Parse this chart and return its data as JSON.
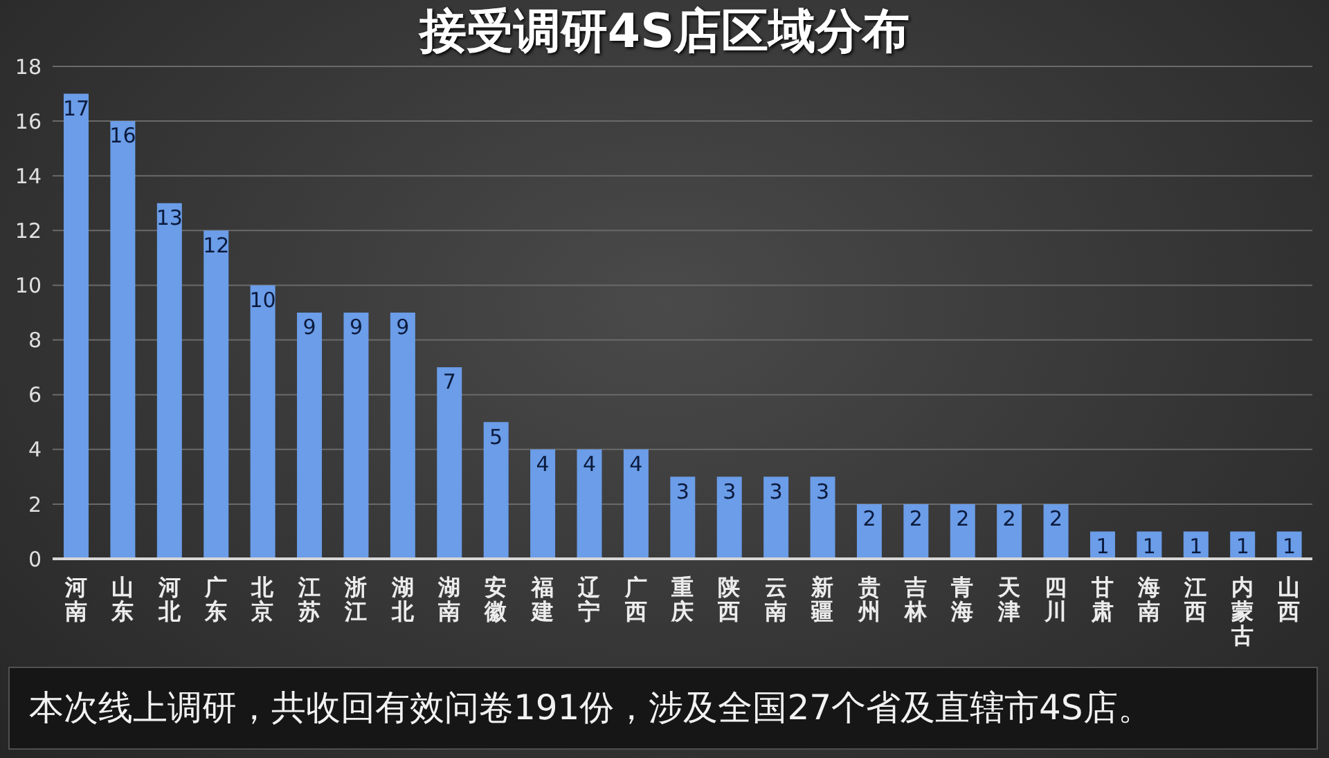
{
  "chart_data": {
    "type": "bar",
    "title": "接受调研4S店区域分布",
    "categories": [
      "河南",
      "山东",
      "河北",
      "广东",
      "北京",
      "江苏",
      "浙江",
      "湖北",
      "湖南",
      "安徽",
      "福建",
      "辽宁",
      "广西",
      "重庆",
      "陕西",
      "云南",
      "新疆",
      "贵州",
      "吉林",
      "青海",
      "天津",
      "四川",
      "甘肃",
      "海南",
      "江西",
      "内蒙古",
      "山西"
    ],
    "values": [
      17,
      16,
      13,
      12,
      10,
      9,
      9,
      9,
      7,
      5,
      4,
      4,
      4,
      3,
      3,
      3,
      3,
      2,
      2,
      2,
      2,
      2,
      1,
      1,
      1,
      1,
      1
    ],
    "color": "#6b9de8",
    "ylim": [
      0,
      18
    ],
    "yticks": [
      0,
      2,
      4,
      6,
      8,
      10,
      12,
      14,
      16,
      18
    ],
    "grid": "y",
    "data_labels": true,
    "annotations": [
      "本次线上调研，共收回有效问卷191份，涉及全国27个省及直辖市4S店。"
    ]
  }
}
